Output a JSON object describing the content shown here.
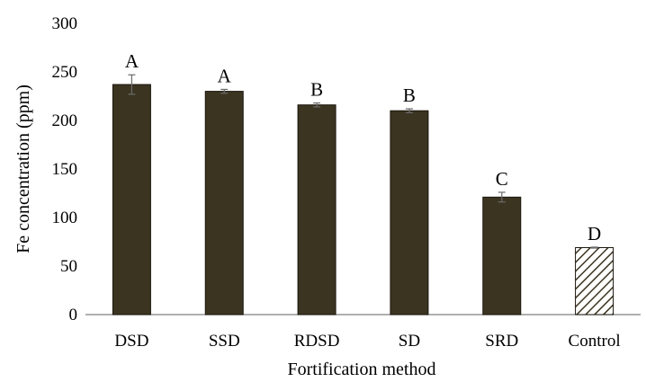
{
  "chart_data": {
    "type": "bar",
    "title": "",
    "xlabel": "Fortification method",
    "ylabel": "Fe concentration (ppm)",
    "ylim": [
      0,
      300
    ],
    "yticks": [
      0,
      50,
      100,
      150,
      200,
      250,
      300
    ],
    "grid": false,
    "legend": "none",
    "categories": [
      "DSD",
      "SSD",
      "RDSD",
      "SD",
      "SRD",
      "Control"
    ],
    "values": [
      237,
      230,
      216,
      210,
      121,
      69
    ],
    "errors": [
      10,
      2,
      2,
      2,
      5,
      0.5
    ],
    "significance_letters": [
      "A",
      "A",
      "B",
      "B",
      "C",
      "D"
    ],
    "patterned_bars": [
      "Control"
    ],
    "colors": {
      "bar_fill": "#3b3421",
      "bar_stroke": "#1a160c",
      "hatch": "#3b3421",
      "axis": "#7f7f7f"
    }
  }
}
